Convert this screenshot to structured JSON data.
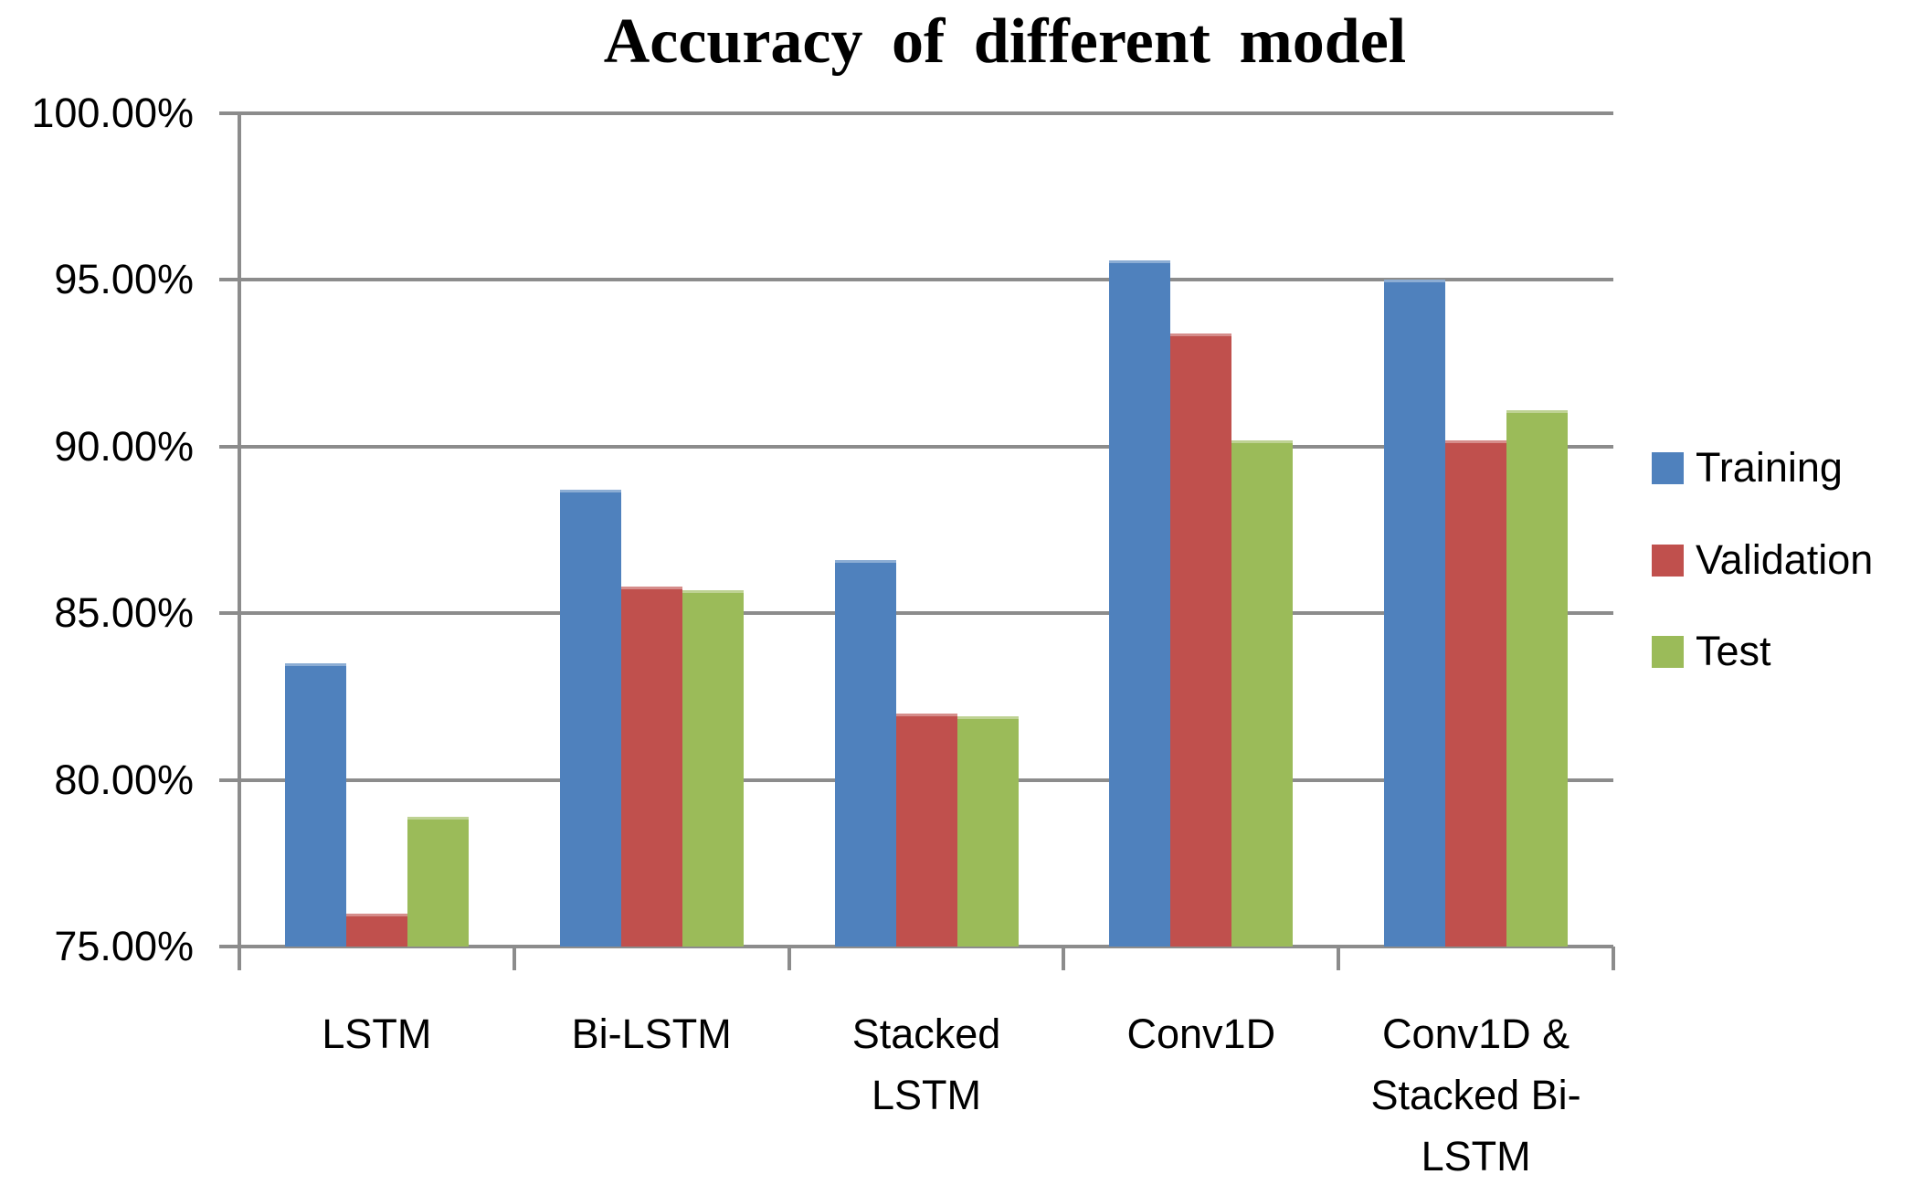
{
  "chart_data": {
    "type": "bar",
    "title": "Accuracy of different model",
    "categories": [
      "LSTM",
      "Bi-LSTM",
      "Stacked LSTM",
      "Conv1D",
      "Conv1D & Stacked Bi-LSTM"
    ],
    "category_label_lines": [
      [
        "LSTM"
      ],
      [
        "Bi-LSTM"
      ],
      [
        "Stacked",
        "LSTM"
      ],
      [
        "Conv1D"
      ],
      [
        "Conv1D &",
        "Stacked Bi-",
        "LSTM"
      ]
    ],
    "series": [
      {
        "name": "Training",
        "color": "#4F81BD",
        "values": [
          83.5,
          88.7,
          86.6,
          95.6,
          95.0
        ]
      },
      {
        "name": "Validation",
        "color": "#C0504D",
        "values": [
          76.0,
          85.8,
          82.0,
          93.4,
          90.2
        ]
      },
      {
        "name": "Test",
        "color": "#9BBB59",
        "values": [
          78.9,
          85.7,
          81.9,
          90.2,
          91.1
        ]
      }
    ],
    "xlabel": "",
    "ylabel": "",
    "ylim": [
      75,
      100
    ],
    "ytick_step": 5,
    "ytick_labels": [
      "75.00%",
      "80.00%",
      "85.00%",
      "90.00%",
      "95.00%",
      "100.00%"
    ],
    "grid": "horizontal",
    "gridline_color": "#8C8C8C",
    "text_color": "#000000",
    "background_color": "#FFFFFF",
    "legend_position": "right"
  }
}
